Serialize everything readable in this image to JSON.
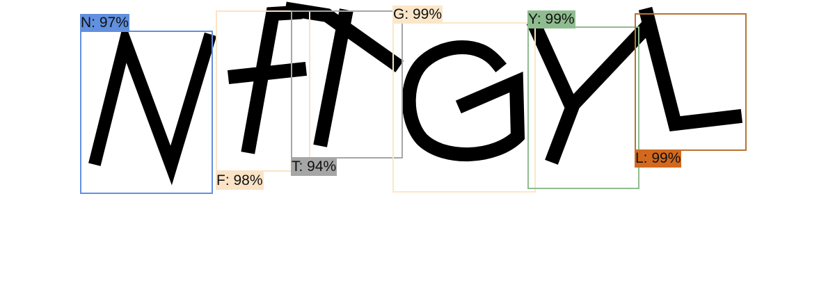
{
  "detections": [
    {
      "char": "N",
      "label": "N: 97%",
      "color": "#6190e0"
    },
    {
      "char": "F",
      "label": "F: 98%",
      "color": "#fbe3c6"
    },
    {
      "char": "T",
      "label": "T: 94%",
      "color": "#a6a6a6"
    },
    {
      "char": "G",
      "label": "G: 99%",
      "color": "#fbe6c9"
    },
    {
      "char": "Y",
      "label": "Y: 99%",
      "color": "#8fbc8f"
    },
    {
      "char": "L",
      "label": "L: 99%",
      "color": "#d2691e"
    }
  ]
}
